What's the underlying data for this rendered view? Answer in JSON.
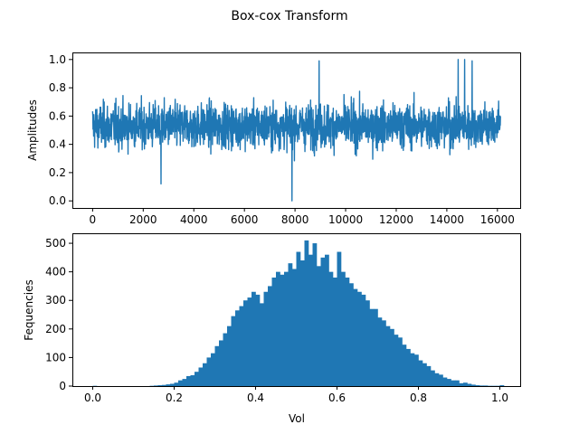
{
  "figure_title": "Box-cox Transform",
  "chart_data": [
    {
      "type": "line",
      "title": "",
      "xlabel": "",
      "ylabel": "Amplitudes",
      "xlim": [
        -800,
        16900
      ],
      "ylim": [
        -0.05,
        1.05
      ],
      "x_ticks": [
        0,
        2000,
        4000,
        6000,
        8000,
        10000,
        12000,
        14000,
        16000
      ],
      "x_tick_labels": [
        "0",
        "2000",
        "4000",
        "6000",
        "8000",
        "10000",
        "12000",
        "14000",
        "16000"
      ],
      "y_ticks": [
        0.0,
        0.2,
        0.4,
        0.6,
        0.8,
        1.0
      ],
      "y_tick_labels": [
        "0.0",
        "0.2",
        "0.4",
        "0.6",
        "0.8",
        "1.0"
      ],
      "n_samples": 16128,
      "typical_range": [
        0.25,
        0.85
      ],
      "mean": 0.53,
      "notable_points": [
        {
          "x": 7880,
          "y": 0.0
        },
        {
          "x": 8950,
          "y": 0.99
        },
        {
          "x": 14450,
          "y": 1.0
        },
        {
          "x": 14700,
          "y": 1.0
        },
        {
          "x": 15000,
          "y": 0.99
        },
        {
          "x": 2700,
          "y": 0.12
        }
      ],
      "color": "#1f77b4",
      "grid": false
    },
    {
      "type": "bar",
      "title": "",
      "xlabel": "Vol",
      "ylabel": "Fequencies",
      "xlim": [
        -0.05,
        1.05
      ],
      "ylim": [
        0,
        535
      ],
      "x_ticks": [
        0.0,
        0.2,
        0.4,
        0.6,
        0.8,
        1.0
      ],
      "x_tick_labels": [
        "0.0",
        "0.2",
        "0.4",
        "0.6",
        "0.8",
        "1.0"
      ],
      "y_ticks": [
        0,
        100,
        200,
        300,
        400,
        500
      ],
      "y_tick_labels": [
        "0",
        "100",
        "200",
        "300",
        "400",
        "500"
      ],
      "bin_start": 0.0,
      "bin_width": 0.01,
      "values": [
        1,
        0,
        0,
        0,
        0,
        0,
        0,
        0,
        0,
        0,
        0,
        0,
        0,
        0,
        1,
        2,
        3,
        4,
        6,
        8,
        12,
        20,
        25,
        35,
        38,
        50,
        65,
        80,
        100,
        115,
        140,
        160,
        185,
        210,
        245,
        265,
        280,
        300,
        310,
        330,
        320,
        290,
        330,
        350,
        380,
        400,
        390,
        400,
        430,
        410,
        470,
        440,
        510,
        460,
        500,
        420,
        450,
        460,
        400,
        380,
        470,
        400,
        380,
        360,
        340,
        330,
        320,
        300,
        270,
        270,
        240,
        230,
        210,
        200,
        180,
        170,
        145,
        130,
        115,
        110,
        90,
        80,
        70,
        55,
        45,
        40,
        30,
        25,
        20,
        20,
        10,
        12,
        8,
        5,
        3,
        2,
        2,
        1,
        1,
        1,
        3
      ]
    }
  ]
}
